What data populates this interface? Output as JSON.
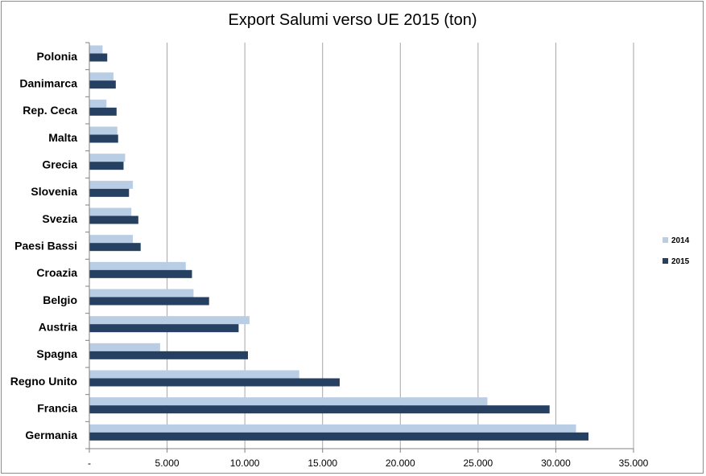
{
  "chart_data": {
    "type": "bar",
    "orientation": "horizontal",
    "title": "Export Salumi verso UE 2015 (ton)",
    "categories": [
      "Polonia",
      "Danimarca",
      "Rep. Ceca",
      "Malta",
      "Grecia",
      "Slovenia",
      "Svezia",
      "Paesi Bassi",
      "Croazia",
      "Belgio",
      "Austria",
      "Spagna",
      "Regno Unito",
      "Francia",
      "Germania"
    ],
    "series": [
      {
        "name": "2014",
        "color": "#b9cde5",
        "values": [
          850,
          1550,
          1100,
          1800,
          2300,
          2800,
          2700,
          2800,
          6200,
          6700,
          10300,
          4550,
          13500,
          25600,
          31300
        ]
      },
      {
        "name": "2015",
        "color": "#254061",
        "values": [
          1150,
          1700,
          1750,
          1850,
          2200,
          2550,
          3150,
          3300,
          6600,
          7700,
          9600,
          10200,
          16100,
          29600,
          32100
        ]
      }
    ],
    "xlim": [
      0,
      35000
    ],
    "x_ticks": [
      0,
      5000,
      10000,
      15000,
      20000,
      25000,
      30000,
      35000
    ],
    "x_tick_labels": [
      "-",
      "5.000",
      "10.000",
      "15.000",
      "20.000",
      "25.000",
      "30.000",
      "35.000"
    ],
    "xgrid": true,
    "legend": "right"
  }
}
